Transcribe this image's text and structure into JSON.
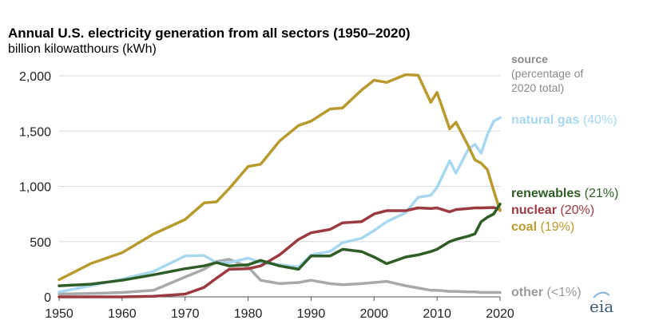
{
  "chart_data": {
    "type": "line",
    "title": "Annual U.S. electricity generation from all sectors (1950–2020)",
    "ylabel": "billion kilowatthours (kWh)",
    "xlabel": "",
    "xlim": [
      1950,
      2020
    ],
    "ylim": [
      0,
      2000
    ],
    "x_ticks": [
      "1950",
      "1960",
      "1970",
      "1980",
      "1990",
      "2000",
      "2010",
      "2020"
    ],
    "y_ticks": [
      "0",
      "500",
      "1,000",
      "1,500",
      "2,000"
    ],
    "grid": "horizontal",
    "legend_header": [
      "source",
      "(percentage of",
      "2020 total)"
    ],
    "x": [
      1950,
      1955,
      1960,
      1965,
      1970,
      1973,
      1975,
      1977,
      1980,
      1982,
      1985,
      1988,
      1990,
      1993,
      1995,
      1998,
      2000,
      2002,
      2005,
      2007,
      2009,
      2010,
      2012,
      2013,
      2015,
      2016,
      2017,
      2018,
      2019,
      2020
    ],
    "series": [
      {
        "name": "coal",
        "share": "(19%)",
        "color": "#b89a2e",
        "values": [
          155,
          300,
          400,
          570,
          700,
          850,
          860,
          980,
          1180,
          1200,
          1410,
          1550,
          1590,
          1700,
          1710,
          1870,
          1960,
          1940,
          2010,
          2005,
          1760,
          1850,
          1520,
          1580,
          1360,
          1240,
          1210,
          1150,
          960,
          780
        ]
      },
      {
        "name": "natural gas",
        "share": "(40%)",
        "color": "#a8d8f0",
        "values": [
          45,
          100,
          160,
          230,
          370,
          375,
          310,
          310,
          350,
          310,
          290,
          270,
          380,
          410,
          490,
          530,
          600,
          680,
          760,
          900,
          920,
          990,
          1230,
          1120,
          1340,
          1380,
          1300,
          1470,
          1590,
          1620
        ]
      },
      {
        "name": "renewables",
        "share": "(21%)",
        "color": "#2e5e25",
        "values": [
          100,
          115,
          150,
          200,
          255,
          280,
          310,
          280,
          290,
          330,
          280,
          250,
          370,
          370,
          430,
          410,
          360,
          300,
          360,
          380,
          410,
          430,
          500,
          520,
          550,
          570,
          680,
          720,
          750,
          840
        ]
      },
      {
        "name": "nuclear",
        "share": "(20%)",
        "color": "#9c3a42",
        "values": [
          0,
          0,
          0,
          5,
          25,
          85,
          170,
          250,
          255,
          280,
          380,
          520,
          580,
          610,
          670,
          680,
          750,
          780,
          780,
          805,
          800,
          805,
          770,
          790,
          800,
          805,
          805,
          807,
          809,
          790
        ]
      },
      {
        "name": "other",
        "share": "(<1%)",
        "color": "#a9a9a9",
        "values": [
          25,
          30,
          40,
          60,
          180,
          250,
          320,
          340,
          270,
          150,
          120,
          130,
          150,
          120,
          110,
          120,
          130,
          140,
          100,
          80,
          60,
          60,
          50,
          50,
          45,
          45,
          40,
          40,
          40,
          40
        ]
      }
    ]
  },
  "logo": {
    "text": "eia"
  }
}
